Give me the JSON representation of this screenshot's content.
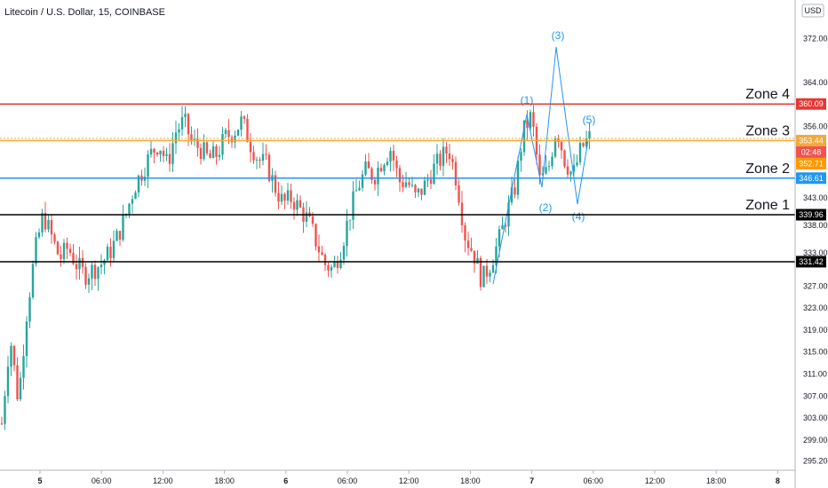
{
  "chart_data": {
    "type": "candlestick",
    "title": "Litecoin / U.S. Dollar, 15, COINBASE",
    "currency": "USD",
    "ylim": [
      293.5,
      379.0
    ],
    "y_ticks": [
      "372.00",
      "364.00",
      "356.00",
      "343.00",
      "338.00",
      "333.00",
      "327.00",
      "323.00",
      "319.00",
      "315.00",
      "311.00",
      "307.00",
      "303.00",
      "299.00",
      "295.20"
    ],
    "x_ticks": [
      {
        "label": "5",
        "bold": true
      },
      {
        "label": "06:00",
        "bold": false
      },
      {
        "label": "12:00",
        "bold": false
      },
      {
        "label": "18:00",
        "bold": false
      },
      {
        "label": "6",
        "bold": true
      },
      {
        "label": "06:00",
        "bold": false
      },
      {
        "label": "12:00",
        "bold": false
      },
      {
        "label": "18:00",
        "bold": false
      },
      {
        "label": "7",
        "bold": true
      },
      {
        "label": "06:00",
        "bold": false
      },
      {
        "label": "12:00",
        "bold": false
      },
      {
        "label": "18:00",
        "bold": false
      },
      {
        "label": "8",
        "bold": true
      }
    ],
    "price_path": [
      302,
      318,
      306,
      322,
      333,
      340,
      336,
      332,
      334,
      331,
      329,
      330,
      331,
      333,
      336,
      340,
      345,
      348,
      351,
      353,
      349,
      355,
      357,
      353,
      352,
      350,
      351,
      354,
      355,
      357,
      353,
      350,
      349,
      345,
      342,
      343,
      341,
      339,
      335,
      331,
      330,
      334,
      340,
      345,
      348,
      347,
      350,
      352,
      346,
      346,
      343,
      345,
      348,
      350,
      352,
      346,
      336,
      333,
      328,
      331,
      335,
      340,
      345,
      355,
      358,
      346,
      348,
      356,
      350,
      347,
      352,
      354
    ],
    "colors": {
      "up": "#26a69a",
      "down": "#ef5350"
    },
    "zones": [
      {
        "name": "Zone 4",
        "value": 360.09,
        "label": "360.09",
        "color": "#e53935"
      },
      {
        "name": "Zone 3",
        "value": 353.44,
        "label": "353.44",
        "color": "#f2a93b"
      },
      {
        "name": "Zone 2",
        "value": 346.61,
        "label": "346.61",
        "color": "#2196f3"
      },
      {
        "name": "Zone 1",
        "value": 339.96,
        "label": "339.96",
        "color": "#000000"
      },
      {
        "name": "",
        "value": 331.42,
        "label": "331.42",
        "color": "#000000"
      }
    ],
    "price_badges": [
      {
        "label": "02:48",
        "color": "#ef5350"
      },
      {
        "label": "352.71",
        "color": "#ff9800"
      }
    ],
    "wave_labels": [
      "(1)",
      "(2)",
      "(3)",
      "(4)",
      "(5)"
    ],
    "wave_color": "#2196f3",
    "grid": false
  }
}
